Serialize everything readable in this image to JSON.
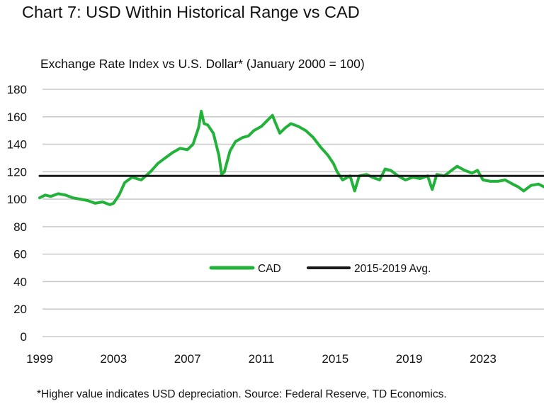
{
  "title": "Chart 7: USD Within Historical Range vs CAD",
  "subtitle": "Exchange Rate Index vs U.S. Dollar* (January 2000 = 100)",
  "footnote": "*Higher value indicates USD depreciation. Source: Federal Reserve, TD Economics.",
  "colors": {
    "cad": "#22b23a",
    "avg": "#1a1a1a",
    "grid": "#cccccc"
  },
  "chart_data": {
    "type": "line",
    "x_unit": "year",
    "xlim": [
      1999,
      2026.3
    ],
    "ylim": [
      0,
      180
    ],
    "x_ticks": [
      1999,
      2003,
      2007,
      2011,
      2015,
      2019,
      2023
    ],
    "y_ticks": [
      0,
      20,
      40,
      60,
      80,
      100,
      120,
      140,
      160,
      180
    ],
    "grid": "horizontal",
    "legend_position": "center",
    "series": [
      {
        "name": "CAD",
        "x": [
          1999.0,
          1999.3,
          1999.6,
          2000.0,
          2000.4,
          2000.8,
          2001.2,
          2001.6,
          2002.0,
          2002.4,
          2002.8,
          2003.0,
          2003.3,
          2003.6,
          2004.0,
          2004.5,
          2005.0,
          2005.4,
          2005.8,
          2006.2,
          2006.6,
          2007.0,
          2007.3,
          2007.6,
          2007.75,
          2007.9,
          2008.1,
          2008.4,
          2008.7,
          2008.85,
          2009.0,
          2009.3,
          2009.6,
          2010.0,
          2010.3,
          2010.6,
          2011.0,
          2011.3,
          2011.6,
          2011.75,
          2012.0,
          2012.3,
          2012.6,
          2013.0,
          2013.4,
          2013.8,
          2014.2,
          2014.6,
          2014.9,
          2015.1,
          2015.4,
          2015.8,
          2016.05,
          2016.3,
          2016.7,
          2017.0,
          2017.4,
          2017.7,
          2018.0,
          2018.4,
          2018.8,
          2019.2,
          2019.6,
          2020.0,
          2020.25,
          2020.5,
          2020.9,
          2021.3,
          2021.6,
          2022.0,
          2022.4,
          2022.7,
          2023.0,
          2023.4,
          2023.8,
          2024.2,
          2024.6,
          2024.9,
          2025.2,
          2025.6,
          2026.0,
          2026.3
        ],
        "values": [
          101,
          103,
          102,
          104,
          103,
          101,
          100,
          99,
          97,
          98,
          96,
          97,
          103,
          112,
          116,
          114,
          120,
          126,
          130,
          134,
          137,
          136,
          140,
          152,
          164,
          155,
          154,
          148,
          132,
          118,
          120,
          135,
          142,
          145,
          146,
          150,
          153,
          157,
          161,
          156,
          148,
          152,
          155,
          153,
          150,
          145,
          138,
          132,
          126,
          120,
          114,
          117,
          106,
          117,
          118,
          116,
          114,
          122,
          121,
          117,
          114,
          116,
          115,
          117,
          107,
          118,
          117,
          121,
          124,
          121,
          119,
          121,
          114,
          113,
          113,
          114,
          111,
          109,
          106,
          110,
          111,
          109
        ]
      },
      {
        "name": "2015-2019 Avg.",
        "x": [
          1999,
          2026.3
        ],
        "values": [
          117,
          117
        ]
      }
    ]
  },
  "legend": {
    "cad_label": "CAD",
    "avg_label": "2015-2019 Avg."
  }
}
